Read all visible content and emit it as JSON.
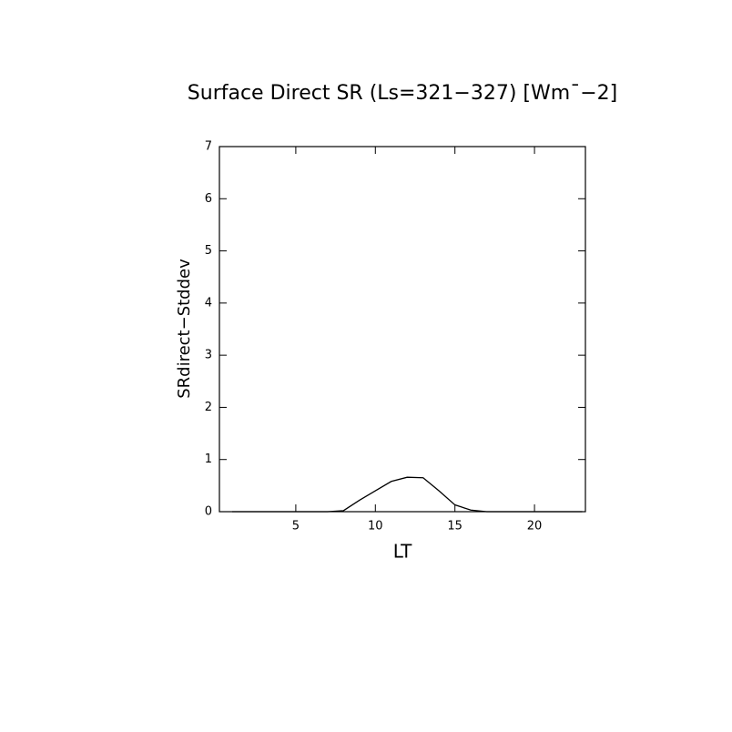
{
  "chart_data": {
    "type": "line",
    "title": "Surface Direct SR (Ls=321−327) [Wm¯−2]",
    "x_label": "LT",
    "y_label": "SRdirect−Stddev",
    "x": [
      1,
      2,
      3,
      4,
      5,
      6,
      7,
      8,
      9,
      10,
      11,
      12,
      13,
      14,
      15,
      16,
      17,
      18,
      19,
      20,
      21,
      22,
      23
    ],
    "series": [
      {
        "color": "#000000",
        "values": [
          0,
          0,
          0,
          0,
          0,
          0,
          0,
          0.02,
          0.22,
          0.4,
          0.58,
          0.66,
          0.65,
          0.4,
          0.13,
          0.03,
          0,
          0,
          0,
          0,
          0,
          0,
          0
        ]
      }
    ],
    "xlim": [
      0.2,
      23.2
    ],
    "xticks": [
      5,
      10,
      15,
      20
    ],
    "ylim": [
      0,
      7
    ],
    "yticks": [
      0,
      1,
      2,
      3,
      4,
      5,
      6,
      7
    ]
  }
}
